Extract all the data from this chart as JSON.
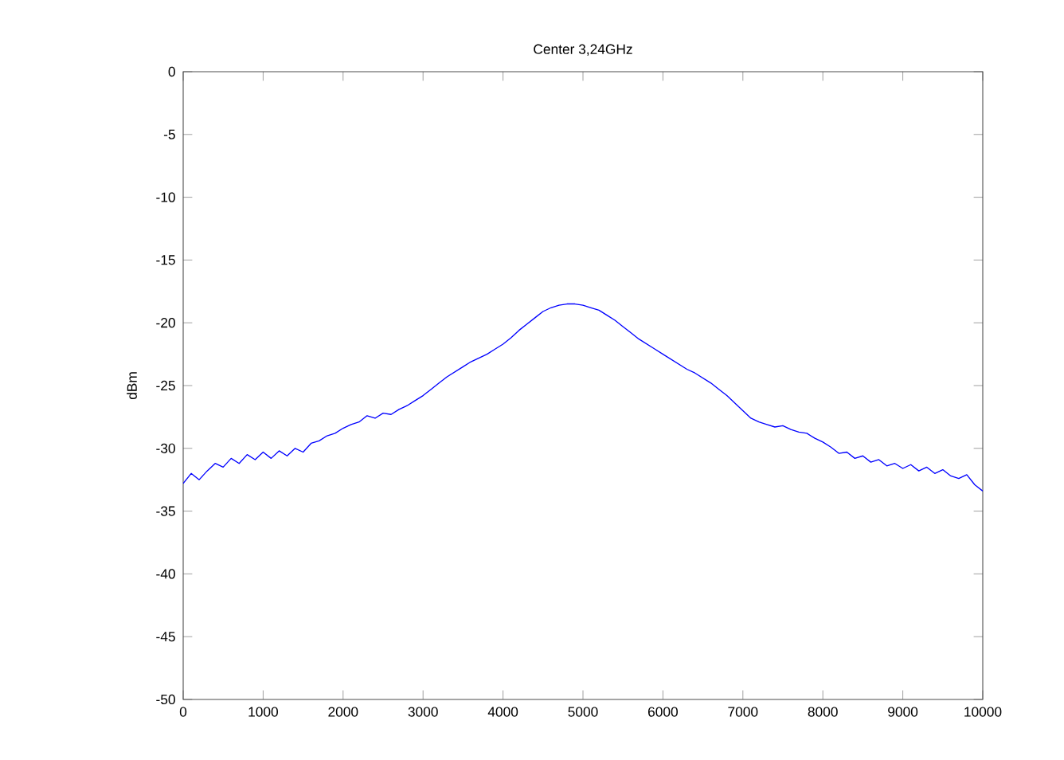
{
  "chart_data": {
    "type": "line",
    "title": "Center 3,24GHz",
    "ylabel": "dBm",
    "xlim": [
      0,
      10000
    ],
    "ylim": [
      -50,
      0
    ],
    "xticks": [
      0,
      1000,
      2000,
      3000,
      4000,
      5000,
      6000,
      7000,
      8000,
      9000,
      10000
    ],
    "yticks": [
      -50,
      -45,
      -40,
      -35,
      -30,
      -25,
      -20,
      -15,
      -10,
      -5,
      0
    ],
    "grid": false,
    "marker": "none",
    "line_style": "solid",
    "series": [
      {
        "color": "#0000ff",
        "x": [
          0,
          100,
          200,
          300,
          400,
          500,
          600,
          700,
          800,
          900,
          1000,
          1100,
          1200,
          1300,
          1400,
          1500,
          1600,
          1700,
          1800,
          1900,
          2000,
          2100,
          2200,
          2300,
          2400,
          2500,
          2600,
          2700,
          2800,
          2900,
          3000,
          3100,
          3200,
          3300,
          3400,
          3500,
          3600,
          3700,
          3800,
          3900,
          4000,
          4100,
          4200,
          4300,
          4400,
          4500,
          4600,
          4700,
          4800,
          4900,
          5000,
          5100,
          5200,
          5300,
          5400,
          5500,
          5600,
          5700,
          5800,
          5900,
          6000,
          6100,
          6200,
          6300,
          6400,
          6500,
          6600,
          6700,
          6800,
          6900,
          7000,
          7100,
          7200,
          7300,
          7400,
          7500,
          7600,
          7700,
          7800,
          7900,
          8000,
          8100,
          8200,
          8300,
          8400,
          8500,
          8600,
          8700,
          8800,
          8900,
          9000,
          9100,
          9200,
          9300,
          9400,
          9500,
          9600,
          9700,
          9800,
          9900,
          10000
        ],
        "values": [
          -32.8,
          -32,
          -32.5,
          -31.8,
          -31.2,
          -31.5,
          -30.8,
          -31.2,
          -30.5,
          -30.9,
          -30.3,
          -30.8,
          -30.2,
          -30.6,
          -30,
          -30.3,
          -29.6,
          -29.4,
          -29,
          -28.8,
          -28.4,
          -28.1,
          -27.9,
          -27.4,
          -27.6,
          -27.2,
          -27.3,
          -26.9,
          -26.6,
          -26.2,
          -25.8,
          -25.3,
          -24.8,
          -24.3,
          -23.9,
          -23.5,
          -23.1,
          -22.8,
          -22.5,
          -22.1,
          -21.7,
          -21.2,
          -20.6,
          -20.1,
          -19.6,
          -19.1,
          -18.8,
          -18.6,
          -18.5,
          -18.5,
          -18.6,
          -18.8,
          -19,
          -19.4,
          -19.8,
          -20.3,
          -20.8,
          -21.3,
          -21.7,
          -22.1,
          -22.5,
          -22.9,
          -23.3,
          -23.7,
          -24,
          -24.4,
          -24.8,
          -25.3,
          -25.8,
          -26.4,
          -27,
          -27.6,
          -27.9,
          -28.1,
          -28.3,
          -28.2,
          -28.5,
          -28.7,
          -28.8,
          -29.2,
          -29.5,
          -29.9,
          -30.4,
          -30.3,
          -30.8,
          -30.6,
          -31.1,
          -30.9,
          -31.4,
          -31.2,
          -31.6,
          -31.3,
          -31.8,
          -31.5,
          -32,
          -31.7,
          -32.2,
          -32.4,
          -32.1,
          -32.9,
          -33.4
        ]
      }
    ]
  }
}
